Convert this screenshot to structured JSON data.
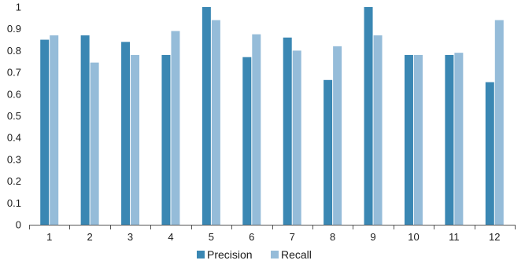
{
  "chart_data": {
    "type": "bar",
    "categories": [
      "1",
      "2",
      "3",
      "4",
      "5",
      "6",
      "7",
      "8",
      "9",
      "10",
      "11",
      "12"
    ],
    "series": [
      {
        "name": "Precision",
        "color": "#3a87b3",
        "values": [
          0.85,
          0.87,
          0.84,
          0.78,
          1.0,
          0.77,
          0.86,
          0.665,
          1.0,
          0.78,
          0.78,
          0.655
        ]
      },
      {
        "name": "Recall",
        "color": "#95bcd9",
        "values": [
          0.87,
          0.745,
          0.78,
          0.89,
          0.94,
          0.875,
          0.8,
          0.82,
          0.87,
          0.78,
          0.79,
          0.94
        ]
      }
    ],
    "yticks": [
      "0",
      "0.1",
      "0.2",
      "0.3",
      "0.4",
      "0.5",
      "0.6",
      "0.7",
      "0.8",
      "0.9",
      "1"
    ],
    "ylim": [
      0,
      1
    ],
    "grid": false,
    "legend": "bottom",
    "axis_color": "#555555"
  }
}
